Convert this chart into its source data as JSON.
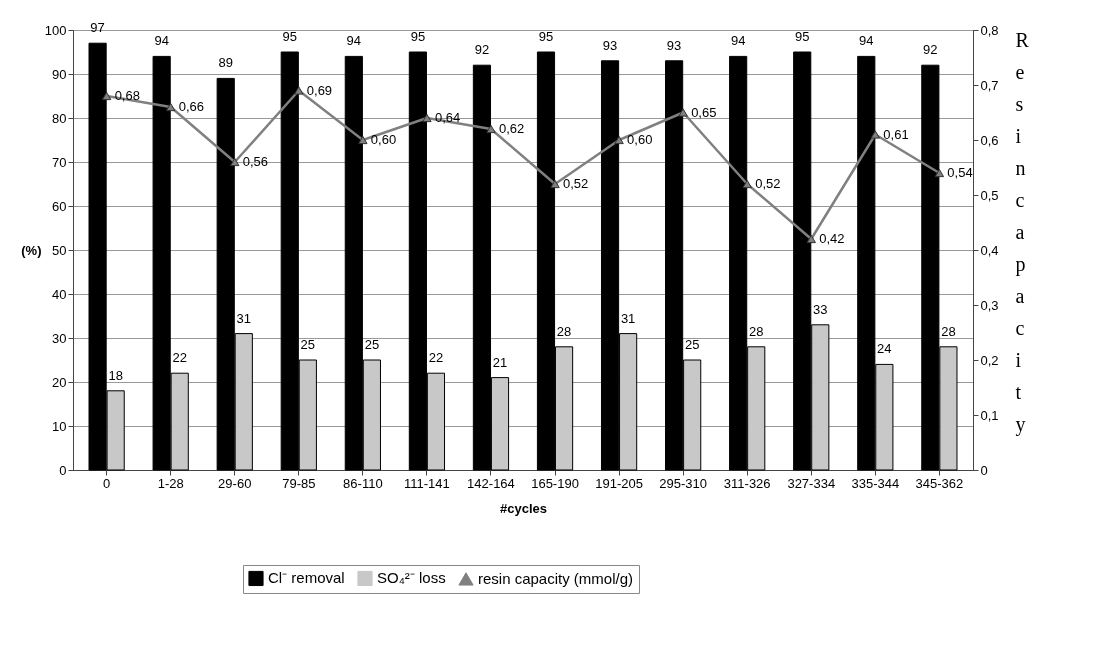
{
  "chart_data": {
    "type": "bar",
    "xlabel": "#cycles",
    "ylabel": "(%)",
    "y2label": "Resin capacity",
    "categories": [
      "0",
      "1-28",
      "29-60",
      "79-85",
      "86-110",
      "111-141",
      "142-164",
      "165-190",
      "191-205",
      "295-310",
      "311-326",
      "327-334",
      "335-344",
      "345-362"
    ],
    "series": [
      {
        "name": "Cl⁻ removal",
        "color": "#000000",
        "values": [
          97,
          94,
          89,
          95,
          94,
          95,
          92,
          95,
          93,
          93,
          94,
          95,
          94,
          92
        ],
        "value_labels": [
          "97",
          "94",
          "89",
          "95",
          "94",
          "95",
          "92",
          "95",
          "93",
          "93",
          "94",
          "95",
          "94",
          "92"
        ]
      },
      {
        "name": "SO₄²⁻ loss",
        "color": "#c8c8c8",
        "values": [
          18,
          22,
          31,
          25,
          25,
          22,
          21,
          28,
          31,
          25,
          28,
          33,
          24,
          28
        ],
        "value_labels": [
          "18",
          "22",
          "31",
          "25",
          "25",
          "22",
          "21",
          "28",
          "31",
          "25",
          "28",
          "33",
          "24",
          "28"
        ]
      },
      {
        "name": "resin capacity (mmol/g)",
        "type": "line",
        "axis": "y2",
        "color": "#808080",
        "values": [
          0.68,
          0.66,
          0.56,
          0.69,
          0.6,
          0.64,
          0.62,
          0.52,
          0.6,
          0.65,
          0.52,
          0.42,
          0.61,
          0.54
        ],
        "value_labels": [
          "0,68",
          "0,66",
          "0,56",
          "0,69",
          "0,60",
          "0,64",
          "0,62",
          "0,52",
          "0,60",
          "0,65",
          "0,52",
          "0,42",
          "0,61",
          "0,54"
        ]
      }
    ],
    "ylim": [
      0,
      100
    ],
    "yticks": [
      0,
      10,
      20,
      30,
      40,
      50,
      60,
      70,
      80,
      90,
      100
    ],
    "y2lim": [
      0,
      0.8
    ],
    "y2ticks": [
      0,
      {
        "value": 0.1,
        "label": "0,1"
      },
      {
        "value": 0.2,
        "label": "0,2"
      },
      {
        "value": 0.3,
        "label": "0,3"
      },
      {
        "value": 0.4,
        "label": "0,4"
      },
      {
        "value": 0.5,
        "label": "0,5"
      },
      {
        "value": 0.6,
        "label": "0,6"
      },
      {
        "value": 0.7,
        "label": "0,7"
      },
      {
        "value": 0.8,
        "label": "0,8"
      }
    ],
    "grid": "y",
    "legend": "bottom",
    "marker": "triangle",
    "line_style": "solid"
  }
}
